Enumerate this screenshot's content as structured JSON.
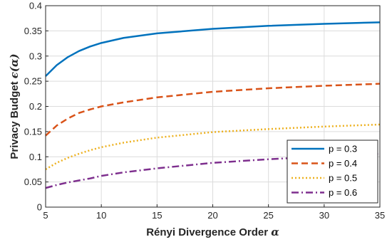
{
  "chart_data": {
    "type": "line",
    "title": "",
    "xlabel_text": "Rényi Divergence Order ",
    "xlabel_symbol": "α",
    "ylabel_text": "Privacy Budget ",
    "ylabel_symbol": "ϵ(α)",
    "xlim": [
      5,
      35
    ],
    "ylim": [
      0,
      0.4
    ],
    "xticks": [
      5,
      10,
      15,
      20,
      25,
      30,
      35
    ],
    "xtick_labels": [
      "5",
      "10",
      "15",
      "20",
      "25",
      "30",
      "35"
    ],
    "yticks": [
      0,
      0.05,
      0.1,
      0.15,
      0.2,
      0.25,
      0.3,
      0.35,
      0.4
    ],
    "ytick_labels": [
      "0",
      "0.05",
      "0.1",
      "0.15",
      "0.2",
      "0.25",
      "0.3",
      "0.35",
      "0.4"
    ],
    "grid": true,
    "legend_position": "bottom-right",
    "x": [
      5,
      6,
      7,
      8,
      9,
      10,
      12,
      15,
      20,
      25,
      30,
      35
    ],
    "series": [
      {
        "name": "p = 0.3",
        "color": "#0072BD",
        "style": "solid",
        "values": [
          0.26,
          0.282,
          0.298,
          0.31,
          0.319,
          0.326,
          0.336,
          0.345,
          0.354,
          0.36,
          0.364,
          0.367
        ]
      },
      {
        "name": "p = 0.4",
        "color": "#D95319",
        "style": "dashed",
        "values": [
          0.142,
          0.162,
          0.176,
          0.187,
          0.194,
          0.2,
          0.208,
          0.218,
          0.229,
          0.236,
          0.241,
          0.245
        ]
      },
      {
        "name": "p = 0.5",
        "color": "#EDB120",
        "style": "dotted",
        "values": [
          0.075,
          0.088,
          0.098,
          0.106,
          0.113,
          0.119,
          0.128,
          0.138,
          0.149,
          0.155,
          0.16,
          0.164
        ]
      },
      {
        "name": "p = 0.6",
        "color": "#7E2F8E",
        "style": "dashdot",
        "values": [
          0.038,
          0.044,
          0.049,
          0.053,
          0.057,
          0.062,
          0.069,
          0.077,
          0.088,
          0.095,
          0.101,
          0.106
        ]
      }
    ]
  }
}
